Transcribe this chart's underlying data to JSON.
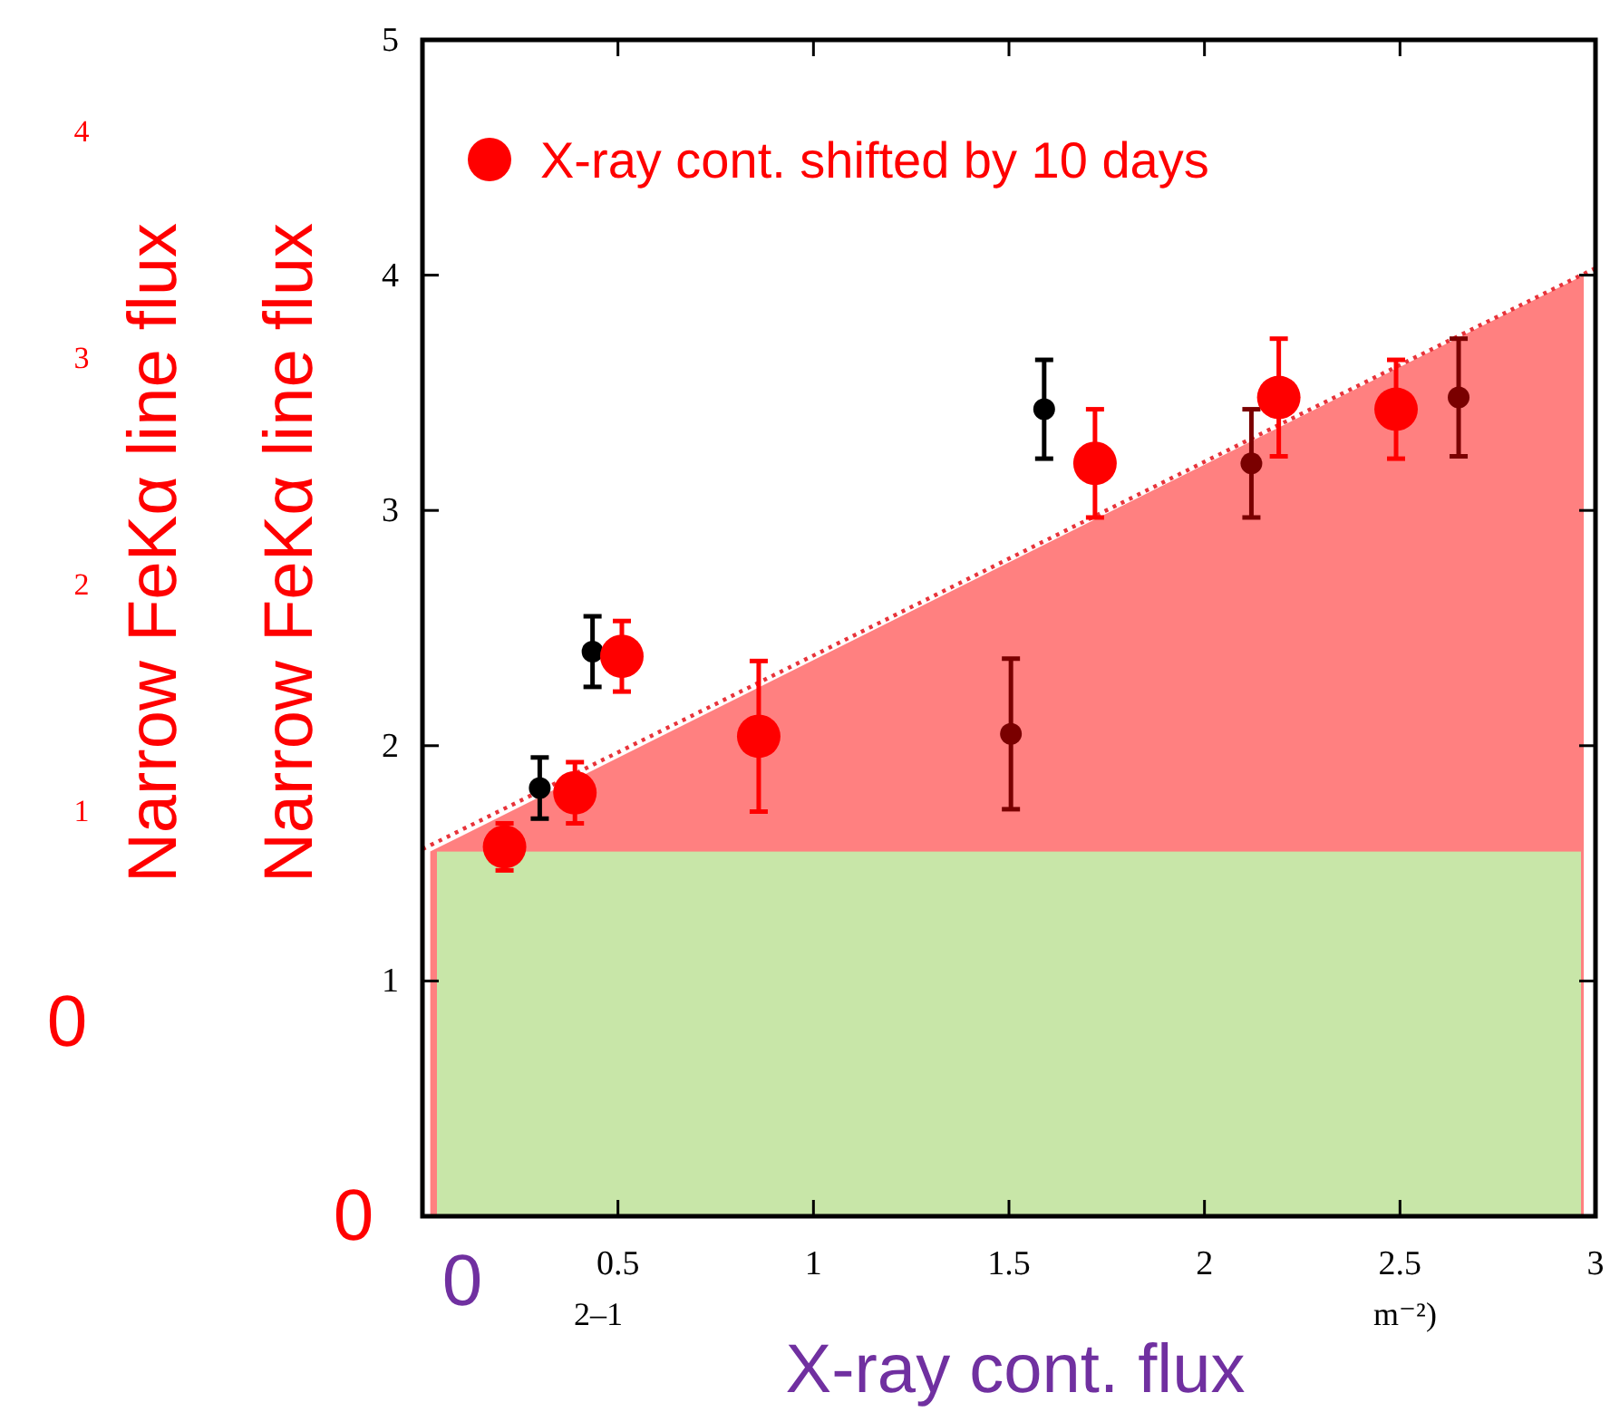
{
  "chart_data": {
    "type": "scatter",
    "xlabel": "X-ray cont. flux",
    "ylabel": "Narrow FeKα line flux",
    "annotations": [
      "4",
      "3",
      "2",
      "1",
      "0",
      "0",
      "0",
      "2–1",
      "m⁻²)",
      "Narrow FeKα line flux"
    ],
    "xlim": [
      0,
      3
    ],
    "xticks": [
      0.5,
      1,
      1.5,
      2,
      2.5,
      3
    ],
    "ylim": [
      0,
      5
    ],
    "yticks": [
      1,
      2,
      3,
      4,
      5
    ],
    "grid": false,
    "legend": "top left",
    "marker": "circle",
    "bands": [
      {
        "axis": "y",
        "from": 0,
        "to": 1.55,
        "color": "#c8e6a8"
      }
    ],
    "series": [
      {
        "type": "area",
        "marker": "none",
        "color": "#ff8080",
        "x": [
          0.02,
          2.97
        ],
        "values": [
          1.55,
          4.0
        ]
      },
      {
        "type": "line",
        "marker": "none",
        "color": "#e8333a",
        "line_style": "dotted",
        "x": [
          0,
          3
        ],
        "values": [
          1.56,
          4.03
        ]
      },
      {
        "color": "#7a0000",
        "x": [
          1.505,
          2.12,
          2.65
        ],
        "values": [
          2.05,
          3.2,
          3.48
        ],
        "errors": [
          0.32,
          0.23,
          0.25
        ]
      },
      {
        "color": "#000000",
        "x": [
          0.3,
          0.435,
          1.59
        ],
        "values": [
          1.82,
          2.4,
          3.43
        ],
        "errors": [
          0.13,
          0.15,
          0.21
        ]
      },
      {
        "name": "X-ray cont. shifted by 10 days",
        "color": "#ff0000",
        "x": [
          0.21,
          0.39,
          0.51,
          0.86,
          1.72,
          2.19,
          2.49
        ],
        "values": [
          1.57,
          1.8,
          2.38,
          2.04,
          3.2,
          3.48,
          3.43
        ],
        "errors": [
          0.1,
          0.13,
          0.15,
          0.32,
          0.23,
          0.25,
          0.21
        ]
      }
    ]
  }
}
